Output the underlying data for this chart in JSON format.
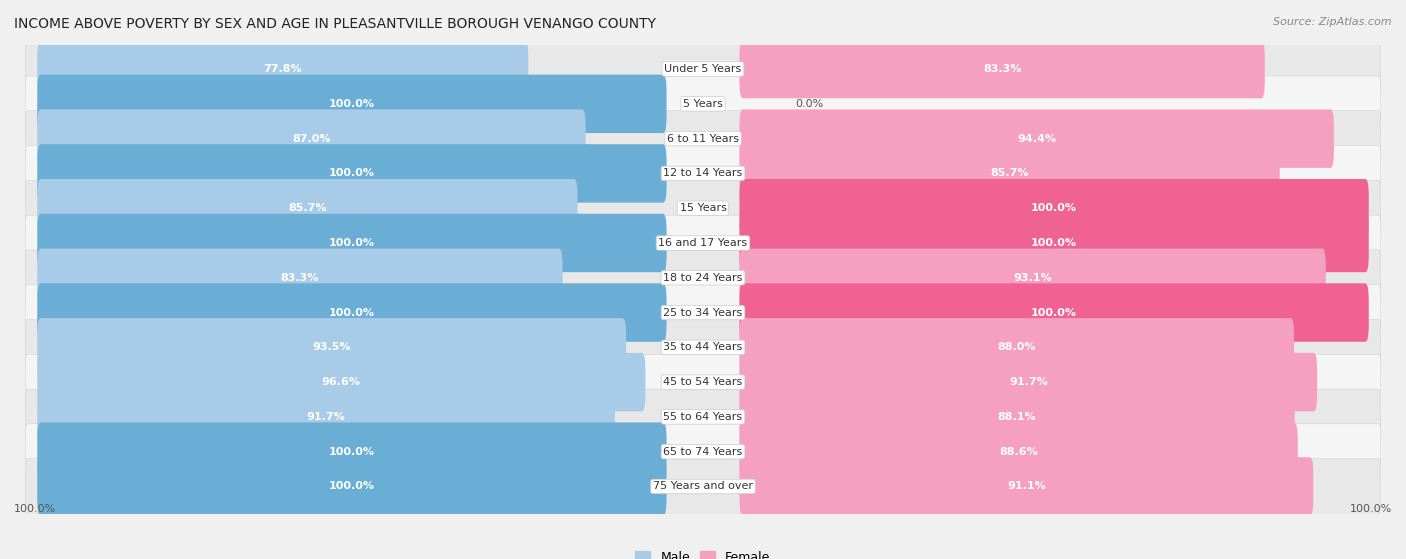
{
  "title": "INCOME ABOVE POVERTY BY SEX AND AGE IN PLEASANTVILLE BOROUGH VENANGO COUNTY",
  "source": "Source: ZipAtlas.com",
  "categories": [
    "Under 5 Years",
    "5 Years",
    "6 to 11 Years",
    "12 to 14 Years",
    "15 Years",
    "16 and 17 Years",
    "18 to 24 Years",
    "25 to 34 Years",
    "35 to 44 Years",
    "45 to 54 Years",
    "55 to 64 Years",
    "65 to 74 Years",
    "75 Years and over"
  ],
  "male_values": [
    77.8,
    100.0,
    87.0,
    100.0,
    85.7,
    100.0,
    83.3,
    100.0,
    93.5,
    96.6,
    91.7,
    100.0,
    100.0
  ],
  "female_values": [
    83.3,
    0.0,
    94.4,
    85.7,
    100.0,
    100.0,
    93.1,
    100.0,
    88.0,
    91.7,
    88.1,
    88.6,
    91.1
  ],
  "male_color_partial": "#a8cce8",
  "male_color_full": "#6aaed6",
  "female_color_partial": "#f4a0be",
  "female_color_tiny": "#f9ccd8",
  "female_color_full": "#f06292",
  "bg_color": "#f0f0f0",
  "row_bg_light": "#f8f8f8",
  "row_bg_dark": "#e8e8e8",
  "max_value": 100.0,
  "legend_male": "Male",
  "legend_female": "Female"
}
